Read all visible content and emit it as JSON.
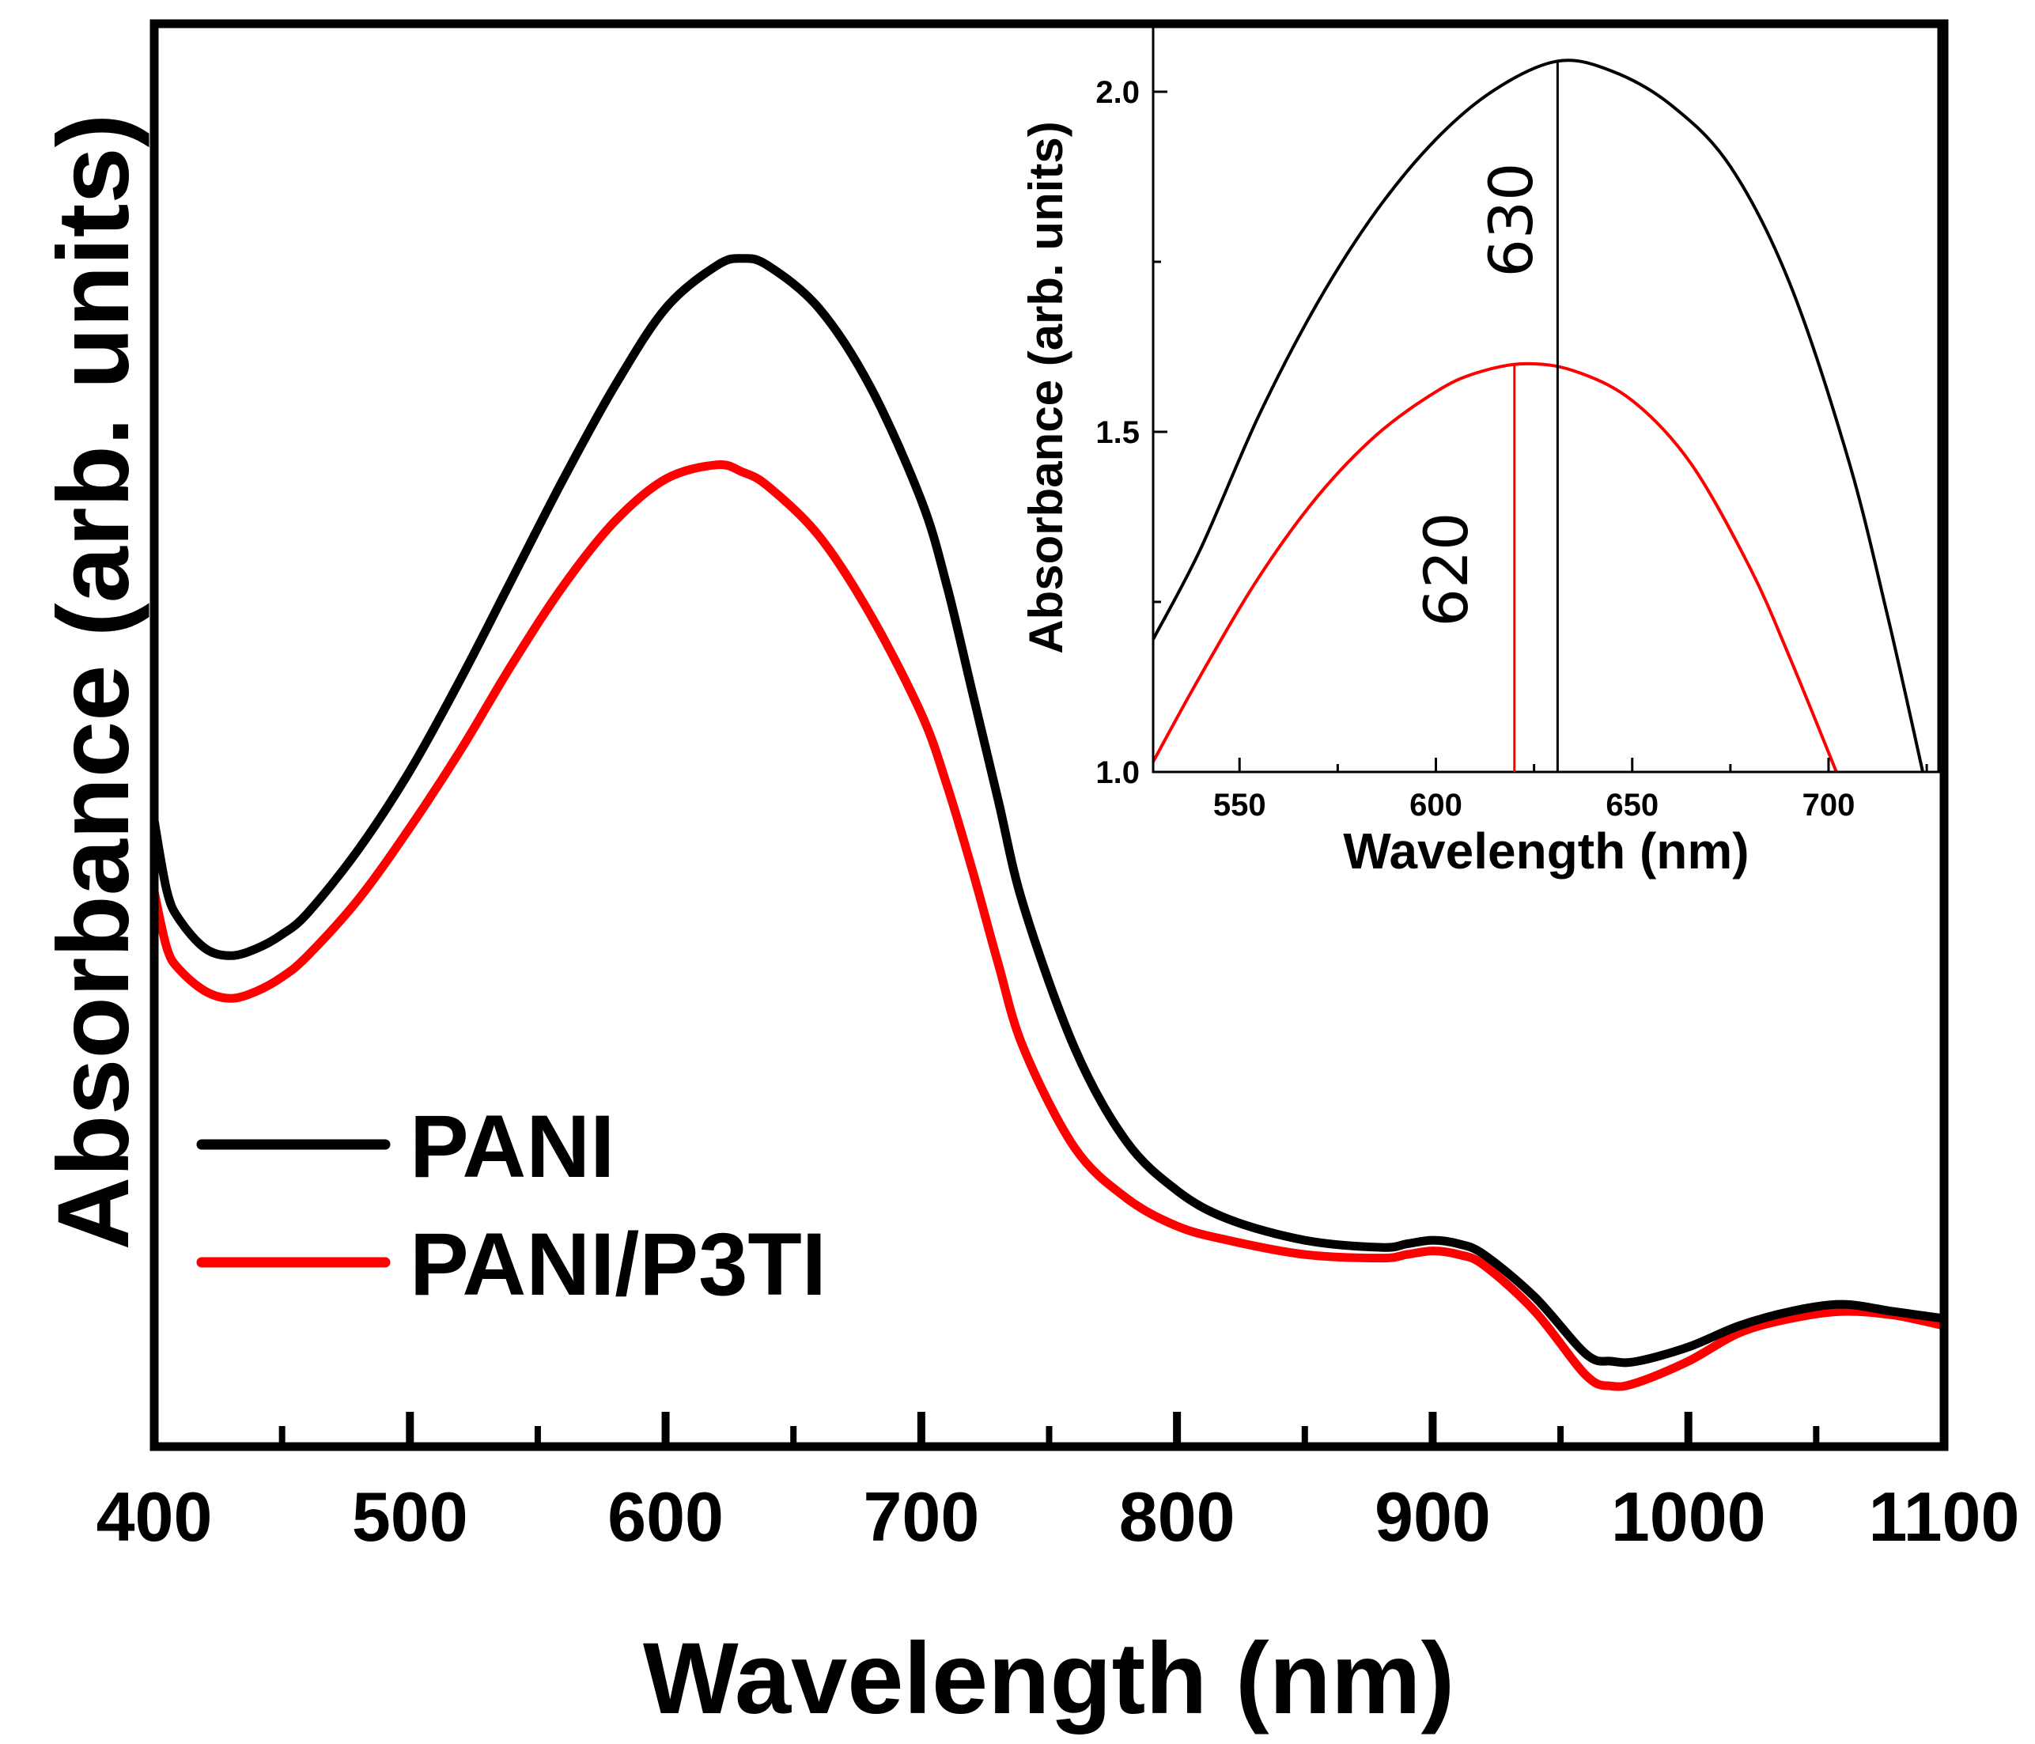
{
  "chart_data": [
    {
      "type": "line",
      "panel": "main",
      "title": "",
      "xlabel": "Wavelength (nm)",
      "ylabel": "Absorbance (arb. units)",
      "xlim": [
        400,
        1100
      ],
      "ylim": [
        0.2,
        2.2
      ],
      "xticks": [
        "400",
        "500",
        "600",
        "700",
        "800",
        "900",
        "1000",
        "1100"
      ],
      "yticks_shown": false,
      "legend_position": "bottom-left",
      "series": [
        {
          "name": "PANI",
          "color": "#000000",
          "x": [
            400,
            405,
            410,
            420,
            430,
            440,
            450,
            460,
            480,
            500,
            520,
            540,
            560,
            580,
            600,
            620,
            630,
            640,
            660,
            680,
            700,
            710,
            720,
            730,
            740,
            760,
            780,
            800,
            820,
            850,
            880,
            890,
            900,
            910,
            920,
            940,
            960,
            970,
            980,
            1000,
            1020,
            1040,
            1060,
            1080,
            1100
          ],
          "y": [
            1.08,
            0.98,
            0.94,
            0.9,
            0.89,
            0.9,
            0.92,
            0.95,
            1.04,
            1.15,
            1.28,
            1.42,
            1.56,
            1.69,
            1.8,
            1.86,
            1.87,
            1.86,
            1.8,
            1.69,
            1.53,
            1.41,
            1.26,
            1.11,
            0.96,
            0.76,
            0.63,
            0.56,
            0.52,
            0.49,
            0.48,
            0.485,
            0.49,
            0.485,
            0.47,
            0.41,
            0.33,
            0.32,
            0.32,
            0.34,
            0.37,
            0.39,
            0.4,
            0.39,
            0.38
          ]
        },
        {
          "name": "PANI/P3TI",
          "color": "#ff0000",
          "x": [
            400,
            405,
            410,
            420,
            430,
            440,
            450,
            460,
            480,
            500,
            520,
            540,
            560,
            580,
            600,
            620,
            630,
            640,
            660,
            680,
            700,
            710,
            720,
            730,
            740,
            760,
            780,
            800,
            820,
            850,
            880,
            890,
            900,
            910,
            920,
            940,
            960,
            970,
            980,
            1000,
            1020,
            1040,
            1060,
            1080,
            1100
          ],
          "y": [
            0.98,
            0.9,
            0.87,
            0.84,
            0.83,
            0.84,
            0.86,
            0.89,
            0.97,
            1.07,
            1.18,
            1.3,
            1.41,
            1.5,
            1.56,
            1.58,
            1.57,
            1.55,
            1.48,
            1.37,
            1.23,
            1.13,
            1.01,
            0.88,
            0.76,
            0.62,
            0.55,
            0.51,
            0.49,
            0.47,
            0.465,
            0.47,
            0.475,
            0.47,
            0.455,
            0.39,
            0.3,
            0.285,
            0.29,
            0.32,
            0.36,
            0.38,
            0.39,
            0.385,
            0.37
          ]
        }
      ]
    },
    {
      "type": "line",
      "panel": "inset",
      "title": "",
      "xlabel": "Wavelength (nm)",
      "ylabel": "Absorbance (arb. units)",
      "xlim": [
        528,
        728
      ],
      "ylim": [
        1.0,
        2.1
      ],
      "xticks": [
        "550",
        "600",
        "650",
        "700"
      ],
      "yticks": [
        "1.0",
        "1.5",
        "2.0"
      ],
      "annotations": [
        {
          "text": "630",
          "x": 631,
          "color": "#000000"
        },
        {
          "text": "620",
          "x": 620,
          "color": "#ff0000"
        }
      ],
      "series": [
        {
          "name": "PANI",
          "color": "#000000",
          "x": [
            528,
            540,
            555,
            570,
            585,
            600,
            615,
            631,
            645,
            660,
            675,
            690,
            705,
            715,
            724
          ],
          "y": [
            1.195,
            1.327,
            1.525,
            1.691,
            1.826,
            1.93,
            2.003,
            2.045,
            2.03,
            1.98,
            1.89,
            1.72,
            1.46,
            1.23,
            1.0
          ]
        },
        {
          "name": "PANI/P3TI",
          "color": "#ff0000",
          "x": [
            528,
            540,
            555,
            570,
            585,
            600,
            610,
            622,
            635,
            650,
            665,
            680,
            690,
            702
          ],
          "y": [
            1.015,
            1.141,
            1.287,
            1.406,
            1.496,
            1.559,
            1.586,
            1.6,
            1.59,
            1.546,
            1.453,
            1.3,
            1.17,
            1.0
          ]
        }
      ]
    }
  ]
}
